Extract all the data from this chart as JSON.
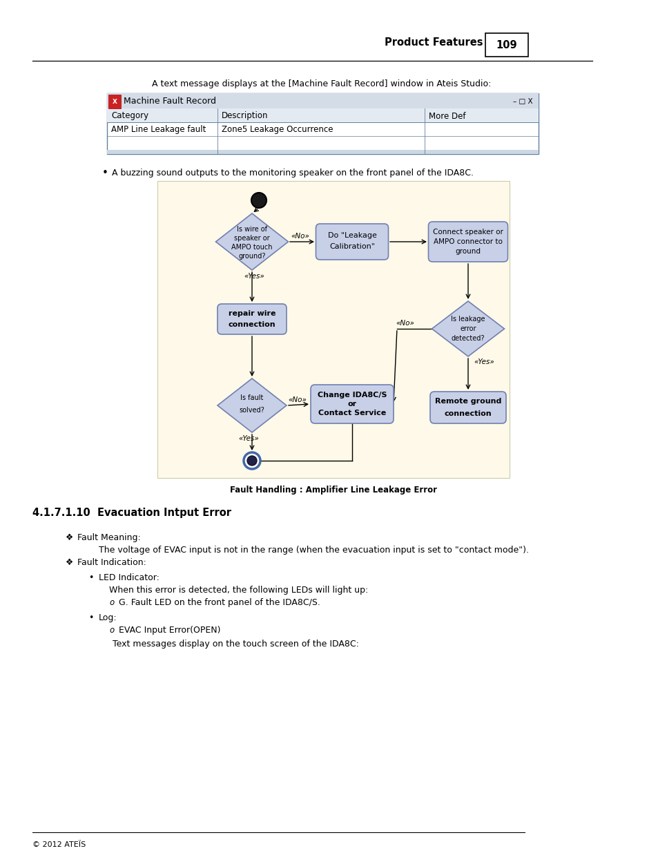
{
  "page_header_text": "Product Features",
  "page_number": "109",
  "footer_text": "© 2012 ATEÏS",
  "intro_text": "A text message displays at the [Machine Fault Record] window in Ateis Studio:",
  "window_title": "Machine Fault Record",
  "table_headers": [
    "Category",
    "Description",
    "More Def"
  ],
  "table_row": [
    "AMP Line Leakage fault",
    "Zone5 Leakage Occurrence",
    ""
  ],
  "bullet_text": "A buzzing sound outputs to the monitoring speaker on the front panel of the IDA8C.",
  "diagram_caption": "Fault Handling : Amplifier Line Leakage Error",
  "section_title": "4.1.7.1.10  Evacuation Intput Error",
  "fault_meaning_label": "Fault Meaning:",
  "fault_meaning_text": "The voltage of EVAC input is not in the range (when the evacuation input is set to \"contact mode\").",
  "fault_indication_label": "Fault Indication:",
  "led_indicator_label": "LED Indicator:",
  "led_text": "When this error is detected, the following LEDs will light up:",
  "led_bullet": "G. Fault LED on the front panel of the IDA8C/S.",
  "log_label": "Log:",
  "log_bullet": "EVAC Input Error(OPEN)",
  "log_text": "Text messages display on the touch screen of the IDA8C:",
  "bg_color": "#ffffff",
  "diagram_bg": "#fef9e8",
  "box_fill": "#c8d0e8",
  "box_stroke": "#7080b0",
  "diamond_fill": "#c8d0e8",
  "diamond_stroke": "#7080b0",
  "window_header_bg": "#d4dce8",
  "window_border": "#6080a0",
  "table_header_bg": "#e4eaf2"
}
